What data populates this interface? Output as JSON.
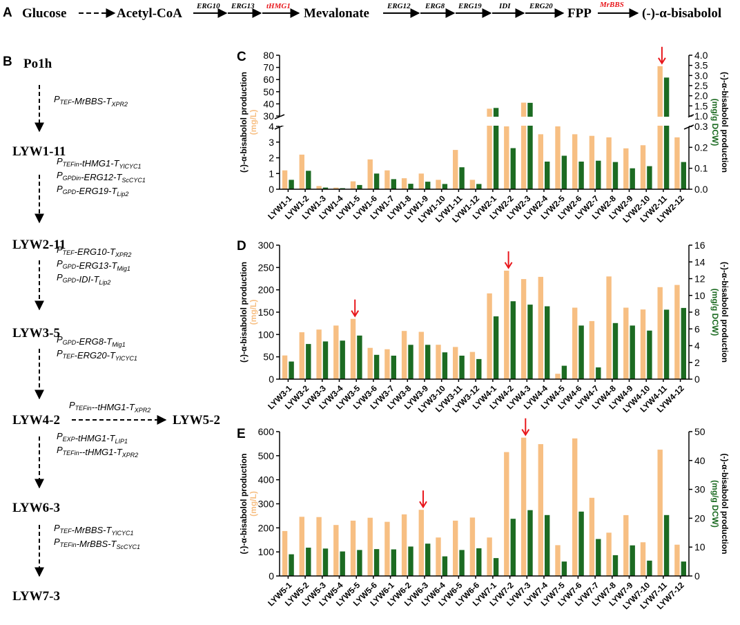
{
  "colors": {
    "orange": "#f7bf83",
    "green": "#1c6b22",
    "red": "#e8161b",
    "black": "#000000"
  },
  "panel_letters": {
    "a": "A",
    "b": "B",
    "c": "C",
    "d": "D",
    "e": "E"
  },
  "pathway": {
    "nodes": [
      "Glucose",
      "Acetyl-CoA",
      "Mevalonate",
      "FPP",
      "(-)-α-bisabolol"
    ],
    "genes": [
      {
        "name": "ERG10",
        "highlight": false
      },
      {
        "name": "ERG13",
        "highlight": false
      },
      {
        "name": "tHMG1",
        "highlight": true
      },
      {
        "name": "ERG12",
        "highlight": false
      },
      {
        "name": "ERG8",
        "highlight": false
      },
      {
        "name": "ERG19",
        "highlight": false
      },
      {
        "name": "IDI",
        "highlight": false
      },
      {
        "name": "ERG20",
        "highlight": false
      },
      {
        "name": "MrBBS",
        "highlight": true
      }
    ]
  },
  "lineage": {
    "strains": [
      "Po1h",
      "LYW1-11",
      "LYW2-11",
      "LYW3-5",
      "LYW4-2",
      "LYW5-2",
      "LYW6-3",
      "LYW7-3"
    ],
    "cassettes": [
      [
        [
          [
            "P",
            "TEF"
          ],
          [
            "-MrBBS-T",
            "XPR2"
          ]
        ]
      ],
      [
        [
          [
            "P",
            "TEFin"
          ],
          [
            "-tHMG1-T",
            "YlCYC1"
          ]
        ],
        [
          [
            "P",
            "GPDin"
          ],
          [
            "-ERG12-T",
            "ScCYC1"
          ]
        ],
        [
          [
            "P",
            "GPD"
          ],
          [
            "-ERG19-T",
            "Lip2"
          ]
        ]
      ],
      [
        [
          [
            "P",
            "TEF"
          ],
          [
            "-ERG10-T",
            "XPR2"
          ]
        ],
        [
          [
            "P",
            "GPD"
          ],
          [
            "-ERG13-T",
            "Mig1"
          ]
        ],
        [
          [
            "P",
            "GPD"
          ],
          [
            "-IDI-T",
            "Lip2"
          ]
        ]
      ],
      [
        [
          [
            "P",
            "GPD"
          ],
          [
            "-ERG8-T",
            "Mig1"
          ]
        ],
        [
          [
            "P",
            "TEF"
          ],
          [
            "-ERG20-T",
            "YlCYC1"
          ]
        ]
      ],
      [
        [
          [
            "P",
            "TEFin"
          ],
          [
            "--tHMG1-T",
            "XPR2"
          ]
        ]
      ],
      [
        [
          [
            "P",
            "EXP"
          ],
          [
            "-tHMG1-T",
            "LIP1"
          ]
        ],
        [
          [
            "P",
            "TEFin"
          ],
          [
            "--tHMG1-T",
            "XPR2"
          ]
        ]
      ],
      [
        [
          [
            "P",
            "TEF"
          ],
          [
            "-MrBBS-T",
            "YlCYC1"
          ]
        ],
        [
          [
            "P",
            "TEFin"
          ],
          [
            "-MrBBS-T",
            "ScCYC1"
          ]
        ]
      ]
    ]
  },
  "chart_data": [
    {
      "panel": "C",
      "type": "bar",
      "categories": [
        "LYW1-1",
        "LYW1-2",
        "LYW1-3",
        "LYW1-4",
        "LYW1-5",
        "LYW1-6",
        "LYW1-7",
        "LYW1-8",
        "LYW1-9",
        "LYW1-10",
        "LYW1-11",
        "LYW1-12",
        "LYW2-1",
        "LYW2-2",
        "LYW2-3",
        "LYW2-4",
        "LYW2-5",
        "LYW2-6",
        "LYW2-7",
        "LYW2-8",
        "LYW2-9",
        "LYW2-10",
        "LYW2-11",
        "LYW2-12"
      ],
      "series": [
        {
          "name": "(-)-α-bisabolol production (mg/L)",
          "axis": "left",
          "color": "orange",
          "values": [
            1.2,
            2.2,
            0.2,
            0.1,
            0.5,
            1.9,
            1.2,
            0.7,
            1.0,
            0.6,
            2.5,
            0.6,
            36,
            4.0,
            41,
            3.5,
            4.0,
            3.5,
            3.4,
            3.3,
            2.6,
            2.8,
            71,
            3.3
          ]
        },
        {
          "name": "(-)-α-bisabolol production (mg/g DCW)",
          "axis": "right",
          "color": "green",
          "values": [
            0.045,
            0.088,
            0.008,
            0.005,
            0.02,
            0.075,
            0.048,
            0.026,
            0.036,
            0.025,
            0.105,
            0.025,
            1.4,
            0.196,
            1.65,
            0.132,
            0.16,
            0.132,
            0.136,
            0.13,
            0.1,
            0.11,
            2.9,
            0.13
          ]
        }
      ],
      "highlight": "LYW2-11",
      "ylabel_left": [
        "(-)-α-bisabolol production",
        "(mg/L)"
      ],
      "ylabel_right": [
        "(-)-α-bisabolol production",
        "(mg/g DCW)"
      ],
      "broken_axis": true,
      "left_lower_range": [
        0,
        4
      ],
      "left_lower_ticks": [
        0,
        1,
        2,
        3,
        4
      ],
      "left_upper_range": [
        30,
        80
      ],
      "left_upper_ticks": [
        30,
        40,
        50,
        60,
        70,
        80
      ],
      "right_lower_range": [
        0,
        0.3
      ],
      "right_lower_ticks": [
        "0.0",
        "0.1",
        "0.2",
        "0.3"
      ],
      "right_upper_range": [
        1.0,
        4.0
      ],
      "right_upper_ticks": [
        "1.0",
        "1.5",
        "2.0",
        "2.5",
        "3.0",
        "3.5",
        "4.0"
      ]
    },
    {
      "panel": "D",
      "type": "bar",
      "categories": [
        "LYW3-1",
        "LYW3-2",
        "LYW3-3",
        "LYW3-4",
        "LYW3-5",
        "LYW3-6",
        "LYW3-7",
        "LYW3-8",
        "LYW3-9",
        "LYW3-10",
        "LYW3-11",
        "LYW3-12",
        "LYW4-1",
        "LYW4-2",
        "LYW4-3",
        "LYW4-4",
        "LYW4-5",
        "LYW4-6",
        "LYW4-7",
        "LYW4-8",
        "LYW4-9",
        "LYW4-10",
        "LYW4-11",
        "LYW4-12"
      ],
      "series": [
        {
          "name": "(-)-α-bisabolol production (mg/L)",
          "axis": "left",
          "color": "orange",
          "values": [
            53,
            105,
            111,
            120,
            135,
            70,
            67,
            108,
            106,
            77,
            72,
            61,
            192,
            243,
            224,
            229,
            12,
            160,
            130,
            230,
            160,
            156,
            206,
            211
          ]
        },
        {
          "name": "(-)-α-bisabolol production (mg/g DCW)",
          "axis": "right",
          "color": "green",
          "values": [
            2.1,
            4.2,
            4.5,
            4.6,
            5.2,
            2.9,
            2.8,
            4.1,
            4.1,
            3.2,
            2.8,
            2.4,
            7.5,
            9.3,
            8.9,
            8.7,
            1.6,
            6.4,
            1.4,
            6.7,
            6.4,
            5.8,
            8.3,
            8.5
          ]
        }
      ],
      "highlights": [
        "LYW3-5",
        "LYW4-2"
      ],
      "ylabel_left": [
        "(-)-α-bisabolol production",
        "(mg/L)"
      ],
      "ylabel_right": [
        "(-)-α-bisabolol production",
        "(mg/g DCW)"
      ],
      "ylim_left": [
        0,
        300
      ],
      "left_ticks": [
        0,
        50,
        100,
        150,
        200,
        250,
        300
      ],
      "ylim_right": [
        0,
        16
      ],
      "right_ticks": [
        0,
        2,
        4,
        6,
        8,
        10,
        12,
        14,
        16
      ]
    },
    {
      "panel": "E",
      "type": "bar",
      "categories": [
        "LYW5-1",
        "LYW5-2",
        "LYW5-3",
        "LYW5-4",
        "LYW5-5",
        "LYW5-6",
        "LYW6-1",
        "LYW6-2",
        "LYW6-3",
        "LYW6-4",
        "LYW6-5",
        "LYW6-6",
        "LYW7-1",
        "LYW7-2",
        "LYW7-3",
        "LYW7-4",
        "LYW7-5",
        "LYW7-6",
        "LYW7-7",
        "LYW7-8",
        "LYW7-9",
        "LYW7-10",
        "LYW7-11",
        "LYW7-12"
      ],
      "series": [
        {
          "name": "(-)-α-bisabolol production (mg/L)",
          "axis": "left",
          "color": "orange",
          "values": [
            187,
            246,
            245,
            212,
            230,
            242,
            225,
            256,
            275,
            160,
            230,
            243,
            160,
            515,
            575,
            548,
            128,
            572,
            325,
            180,
            253,
            140,
            525,
            130
          ]
        },
        {
          "name": "(-)-α-bisabolol production (mg/g DCW)",
          "axis": "right",
          "color": "green",
          "values": [
            7.5,
            9.8,
            9.5,
            8.5,
            9.0,
            9.3,
            9.2,
            10.2,
            11.2,
            6.8,
            9.0,
            9.6,
            6.2,
            19.8,
            22.8,
            21.1,
            5.0,
            22.3,
            12.8,
            7.2,
            10.6,
            5.3,
            21.1,
            5.0
          ]
        }
      ],
      "highlights": [
        "LYW6-3",
        "LYW7-3"
      ],
      "ylabel_left": [
        "(-)-α-bisabolol production",
        "(mg/L)"
      ],
      "ylabel_right": [
        "(-)-α-bisabolol production",
        "(mg/g DCW)"
      ],
      "ylim_left": [
        0,
        600
      ],
      "left_ticks": [
        0,
        100,
        200,
        300,
        400,
        500,
        600
      ],
      "ylim_right": [
        0,
        50
      ],
      "right_ticks": [
        0,
        10,
        20,
        30,
        40,
        50
      ]
    }
  ]
}
